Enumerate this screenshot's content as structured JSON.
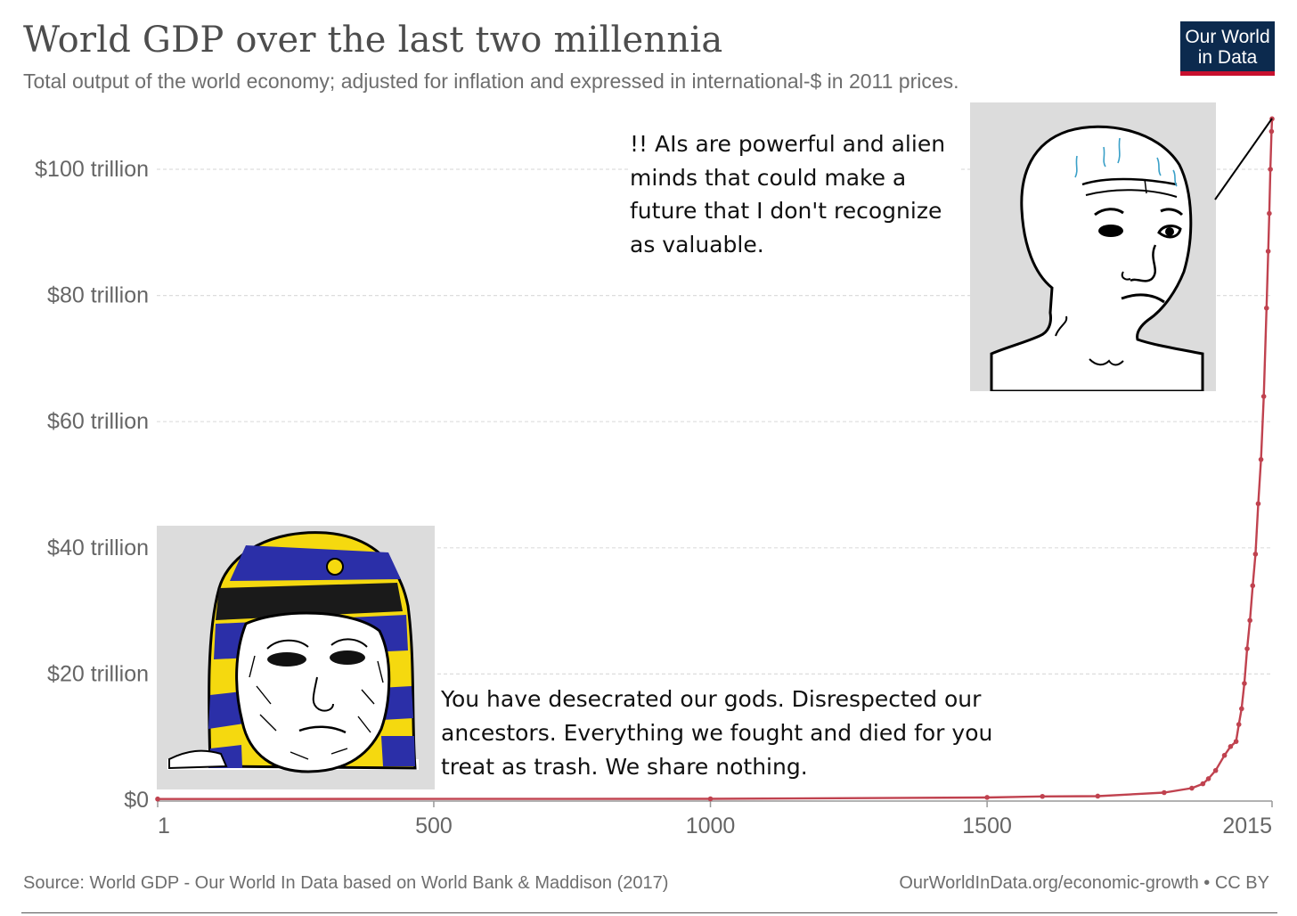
{
  "header": {
    "title": "World GDP over the last two millennia",
    "subtitle": "Total output of the world economy; adjusted for inflation and expressed in international-$ in 2011 prices."
  },
  "logo": {
    "line1": "Our World",
    "line2": "in Data"
  },
  "footer": {
    "source": "Source: World GDP - Our World In Data based on World Bank & Maddison (2017)",
    "url": "OurWorldInData.org/economic-growth • CC BY"
  },
  "colors": {
    "line": "#c0424f",
    "grid": "#dddddd",
    "axis_text": "#666666",
    "meme_bg": "#dcdcdc"
  },
  "memes": {
    "wojak": {
      "icon": "worried-wojak-face-icon",
      "caption": "!! AIs are powerful and alien minds that could make a future that I don't recognize as valuable."
    },
    "pharaoh": {
      "icon": "pharaoh-wojak-face-icon",
      "caption": "You have desecrated our gods. Disrespected our ancestors. Everything we fought and died for you treat as trash. We share nothing."
    }
  },
  "chart_data": {
    "type": "line",
    "title": "World GDP over the last two millennia",
    "xlabel": "",
    "ylabel": "",
    "xlim": [
      1,
      2015
    ],
    "ylim": [
      0,
      110
    ],
    "grid": true,
    "x_ticks": [
      {
        "value": 1,
        "label": "1"
      },
      {
        "value": 500,
        "label": "500"
      },
      {
        "value": 1000,
        "label": "1000"
      },
      {
        "value": 1500,
        "label": "1500"
      },
      {
        "value": 2015,
        "label": "2015"
      }
    ],
    "y_ticks": [
      {
        "value": 0,
        "label": "$0"
      },
      {
        "value": 20,
        "label": "$20 trillion"
      },
      {
        "value": 40,
        "label": "$40 trillion"
      },
      {
        "value": 60,
        "label": "$60 trillion"
      },
      {
        "value": 80,
        "label": "$80 trillion"
      },
      {
        "value": 100,
        "label": "$100 trillion"
      }
    ],
    "series": [
      {
        "x": [
          1,
          1000,
          1500,
          1600,
          1700,
          1820,
          1870,
          1890,
          1900,
          1913,
          1929,
          1940,
          1950,
          1955,
          1960,
          1965,
          1970,
          1975,
          1980,
          1985,
          1990,
          1995,
          2000,
          2005,
          2008,
          2010,
          2012,
          2014,
          2015
        ],
        "y": [
          0.18,
          0.21,
          0.43,
          0.6,
          0.64,
          1.2,
          1.9,
          2.6,
          3.4,
          4.7,
          7.1,
          8.5,
          9.3,
          12.0,
          14.5,
          18.5,
          24.0,
          28.5,
          34.0,
          39.0,
          47.0,
          54.0,
          64.0,
          78.0,
          87.0,
          93.0,
          100.0,
          106.0,
          108.0
        ]
      }
    ]
  }
}
